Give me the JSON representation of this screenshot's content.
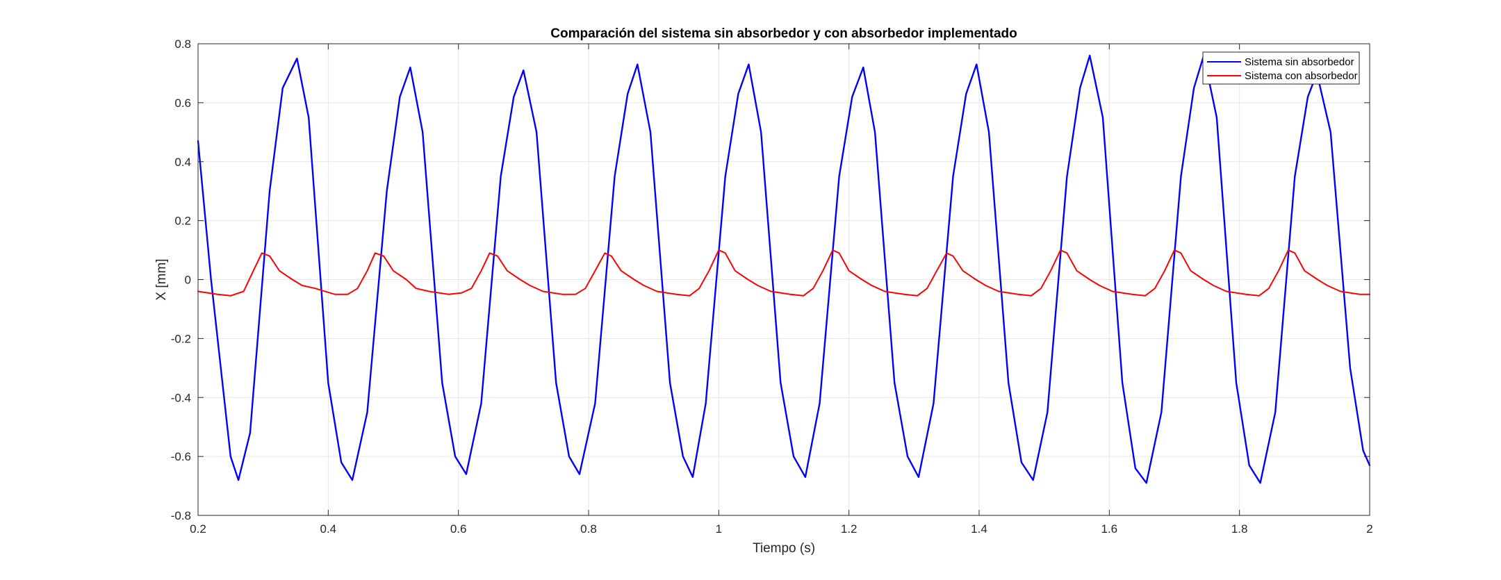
{
  "chart_data": {
    "type": "line",
    "title": "Comparación del sistema sin absorbedor y con absorbedor implementado",
    "xlabel": "Tiempo (s)",
    "ylabel": "X [mm]",
    "xlim": [
      0.2,
      2.0
    ],
    "ylim": [
      -0.8,
      0.8
    ],
    "xticks": [
      0.2,
      0.4,
      0.6,
      0.8,
      1.0,
      1.2,
      1.4,
      1.6,
      1.8,
      2.0
    ],
    "xtick_labels": [
      "0.2",
      "0.4",
      "0.6",
      "0.8",
      "1",
      "1.2",
      "1.4",
      "1.6",
      "1.8",
      "2"
    ],
    "yticks": [
      -0.8,
      -0.6,
      -0.4,
      -0.2,
      0,
      0.2,
      0.4,
      0.6,
      0.8
    ],
    "ytick_labels": [
      "-0.8",
      "-0.6",
      "-0.4",
      "-0.2",
      "0",
      "0.2",
      "0.4",
      "0.6",
      "0.8"
    ],
    "grid": true,
    "legend": {
      "placement": "top-right"
    },
    "series": [
      {
        "name": "Sistema sin absorbedor",
        "color": "#0000ff",
        "x": [
          0.2,
          0.22,
          0.25,
          0.262,
          0.28,
          0.31,
          0.33,
          0.352,
          0.37,
          0.4,
          0.42,
          0.437,
          0.46,
          0.49,
          0.51,
          0.526,
          0.545,
          0.575,
          0.595,
          0.612,
          0.635,
          0.665,
          0.685,
          0.7,
          0.72,
          0.75,
          0.77,
          0.786,
          0.81,
          0.84,
          0.86,
          0.875,
          0.895,
          0.925,
          0.945,
          0.96,
          0.98,
          1.01,
          1.03,
          1.046,
          1.065,
          1.095,
          1.115,
          1.133,
          1.155,
          1.185,
          1.205,
          1.222,
          1.24,
          1.27,
          1.29,
          1.307,
          1.33,
          1.36,
          1.38,
          1.396,
          1.415,
          1.445,
          1.465,
          1.483,
          1.505,
          1.535,
          1.555,
          1.57,
          1.59,
          1.62,
          1.64,
          1.657,
          1.68,
          1.71,
          1.73,
          1.745,
          1.765,
          1.795,
          1.815,
          1.832,
          1.855,
          1.885,
          1.905,
          1.919,
          1.94,
          1.97,
          1.99,
          2.0
        ],
        "y": [
          0.47,
          0.0,
          -0.6,
          -0.68,
          -0.52,
          0.3,
          0.65,
          0.75,
          0.55,
          -0.35,
          -0.62,
          -0.68,
          -0.45,
          0.3,
          0.62,
          0.72,
          0.5,
          -0.35,
          -0.6,
          -0.66,
          -0.42,
          0.35,
          0.62,
          0.71,
          0.5,
          -0.35,
          -0.6,
          -0.66,
          -0.42,
          0.35,
          0.63,
          0.73,
          0.5,
          -0.35,
          -0.6,
          -0.67,
          -0.42,
          0.35,
          0.63,
          0.73,
          0.5,
          -0.35,
          -0.6,
          -0.67,
          -0.42,
          0.35,
          0.62,
          0.72,
          0.5,
          -0.35,
          -0.6,
          -0.67,
          -0.42,
          0.35,
          0.63,
          0.73,
          0.5,
          -0.35,
          -0.62,
          -0.68,
          -0.45,
          0.35,
          0.65,
          0.76,
          0.55,
          -0.35,
          -0.64,
          -0.69,
          -0.45,
          0.35,
          0.65,
          0.76,
          0.55,
          -0.35,
          -0.63,
          -0.69,
          -0.45,
          0.35,
          0.62,
          0.7,
          0.5,
          -0.3,
          -0.58,
          -0.63
        ]
      },
      {
        "name": "Sistema con absorbedor",
        "color": "#ff0000",
        "x": [
          0.2,
          0.23,
          0.25,
          0.27,
          0.285,
          0.298,
          0.31,
          0.325,
          0.345,
          0.36,
          0.38,
          0.41,
          0.43,
          0.445,
          0.46,
          0.472,
          0.485,
          0.5,
          0.52,
          0.535,
          0.555,
          0.585,
          0.605,
          0.62,
          0.635,
          0.648,
          0.66,
          0.675,
          0.695,
          0.71,
          0.73,
          0.76,
          0.78,
          0.795,
          0.81,
          0.825,
          0.835,
          0.85,
          0.87,
          0.885,
          0.905,
          0.935,
          0.955,
          0.97,
          0.985,
          1.0,
          1.01,
          1.025,
          1.045,
          1.06,
          1.08,
          1.11,
          1.13,
          1.145,
          1.16,
          1.175,
          1.185,
          1.2,
          1.22,
          1.235,
          1.255,
          1.285,
          1.305,
          1.32,
          1.335,
          1.35,
          1.36,
          1.375,
          1.395,
          1.41,
          1.43,
          1.46,
          1.48,
          1.495,
          1.51,
          1.525,
          1.535,
          1.55,
          1.57,
          1.585,
          1.605,
          1.635,
          1.655,
          1.67,
          1.685,
          1.7,
          1.71,
          1.725,
          1.745,
          1.76,
          1.78,
          1.81,
          1.83,
          1.845,
          1.86,
          1.875,
          1.885,
          1.9,
          1.92,
          1.935,
          1.955,
          1.985,
          2.0
        ],
        "y": [
          -0.04,
          -0.05,
          -0.055,
          -0.04,
          0.03,
          0.09,
          0.08,
          0.03,
          0.0,
          -0.02,
          -0.03,
          -0.05,
          -0.05,
          -0.03,
          0.03,
          0.09,
          0.08,
          0.03,
          0.0,
          -0.03,
          -0.04,
          -0.05,
          -0.045,
          -0.03,
          0.03,
          0.09,
          0.08,
          0.03,
          0.0,
          -0.02,
          -0.04,
          -0.05,
          -0.05,
          -0.03,
          0.03,
          0.09,
          0.08,
          0.03,
          0.0,
          -0.02,
          -0.04,
          -0.05,
          -0.055,
          -0.03,
          0.03,
          0.1,
          0.09,
          0.03,
          0.0,
          -0.02,
          -0.04,
          -0.05,
          -0.055,
          -0.03,
          0.03,
          0.1,
          0.09,
          0.03,
          0.0,
          -0.02,
          -0.04,
          -0.05,
          -0.055,
          -0.03,
          0.03,
          0.09,
          0.08,
          0.03,
          0.0,
          -0.02,
          -0.04,
          -0.05,
          -0.055,
          -0.03,
          0.03,
          0.1,
          0.09,
          0.03,
          0.0,
          -0.02,
          -0.04,
          -0.05,
          -0.055,
          -0.03,
          0.03,
          0.1,
          0.09,
          0.03,
          0.0,
          -0.02,
          -0.04,
          -0.05,
          -0.055,
          -0.03,
          0.03,
          0.1,
          0.09,
          0.03,
          0.0,
          -0.02,
          -0.04,
          -0.05,
          -0.05
        ]
      }
    ]
  }
}
